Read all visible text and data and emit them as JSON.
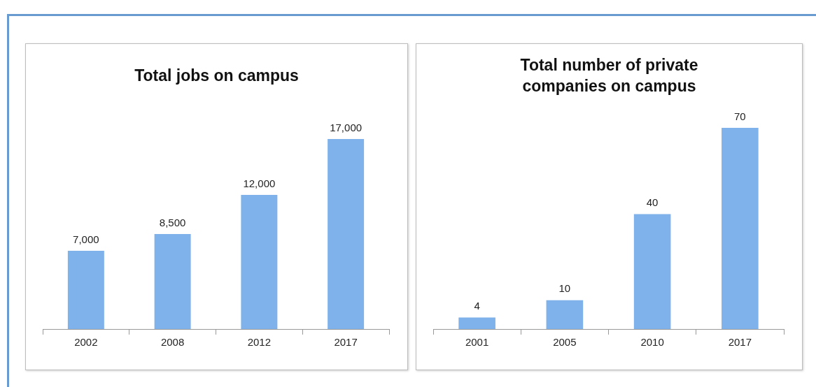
{
  "chart_data": [
    {
      "type": "bar",
      "title": "Total jobs on campus",
      "categories": [
        "2002",
        "2008",
        "2012",
        "2017"
      ],
      "values": [
        7000,
        8500,
        12000,
        17000
      ],
      "value_labels": [
        "7,000",
        "8,500",
        "12,000",
        "17,000"
      ],
      "color": "#7fb2ea",
      "grid": false,
      "legend": false,
      "tick_labels": "x"
    },
    {
      "type": "bar",
      "title": "Total number of private companies on campus",
      "categories": [
        "2001",
        "2005",
        "2010",
        "2017"
      ],
      "values": [
        4,
        10,
        40,
        70
      ],
      "color": "#7fb2ea",
      "data_labels": true,
      "grid": false,
      "legend": false,
      "tick_labels": "x"
    }
  ]
}
